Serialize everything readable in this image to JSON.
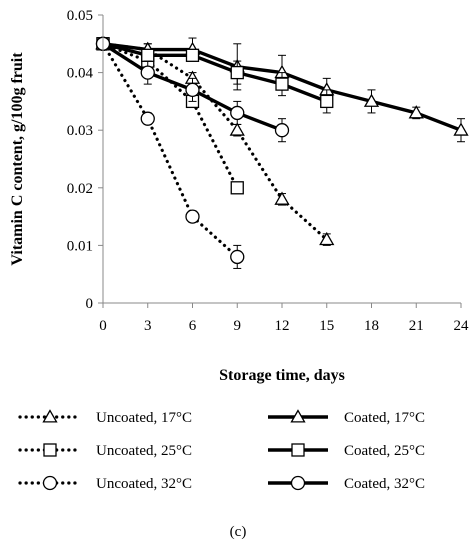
{
  "chart_data": {
    "type": "line",
    "xlabel": "Storage time, days",
    "ylabel": "Vitamin C content, g/100g fruit",
    "xlim": [
      0,
      24
    ],
    "ylim": [
      0,
      0.05
    ],
    "x_ticks": [
      "0",
      "3",
      "6",
      "9",
      "12",
      "15",
      "18",
      "21",
      "24"
    ],
    "y_ticks": [
      "0",
      "0.01",
      "0.02",
      "0.03",
      "0.04",
      "0.05"
    ],
    "grid": false,
    "legend_position": "bottom",
    "series": [
      {
        "name": "Uncoated, 17°C",
        "style": "dotted",
        "marker": "triangle",
        "x": [
          0,
          3,
          6,
          9,
          12,
          15
        ],
        "y": [
          0.045,
          0.044,
          0.039,
          0.03,
          0.018,
          0.011
        ],
        "err": [
          0.001,
          0.001,
          0.001,
          0.001,
          0.001,
          0.001
        ]
      },
      {
        "name": "Uncoated, 25°C",
        "style": "dotted",
        "marker": "square",
        "x": [
          0,
          3,
          6,
          9
        ],
        "y": [
          0.045,
          0.042,
          0.035,
          0.02
        ],
        "err": [
          0.001,
          0.001,
          0.001,
          0.001
        ]
      },
      {
        "name": "Uncoated, 32°C",
        "style": "dotted",
        "marker": "circle",
        "x": [
          0,
          3,
          6,
          9
        ],
        "y": [
          0.045,
          0.032,
          0.015,
          0.008
        ],
        "err": [
          0.001,
          0.001,
          0.001,
          0.002
        ]
      },
      {
        "name": "Coated, 17°C",
        "style": "solid",
        "marker": "triangle",
        "x": [
          0,
          3,
          6,
          9,
          12,
          15,
          18,
          21,
          24
        ],
        "y": [
          0.045,
          0.044,
          0.044,
          0.041,
          0.04,
          0.037,
          0.035,
          0.033,
          0.03
        ],
        "err": [
          0.001,
          0.001,
          0.002,
          0.004,
          0.003,
          0.002,
          0.002,
          0.001,
          0.002
        ]
      },
      {
        "name": "Coated, 25°C",
        "style": "solid",
        "marker": "square",
        "x": [
          0,
          3,
          6,
          9,
          12,
          15
        ],
        "y": [
          0.045,
          0.043,
          0.043,
          0.04,
          0.038,
          0.035
        ],
        "err": [
          0.001,
          0.001,
          0.001,
          0.002,
          0.002,
          0.002
        ]
      },
      {
        "name": "Coated, 32°C",
        "style": "solid",
        "marker": "circle",
        "x": [
          0,
          3,
          6,
          9,
          12
        ],
        "y": [
          0.045,
          0.04,
          0.037,
          0.033,
          0.03
        ],
        "err": [
          0.001,
          0.002,
          0.002,
          0.002,
          0.002
        ]
      }
    ],
    "caption": "(c)"
  }
}
